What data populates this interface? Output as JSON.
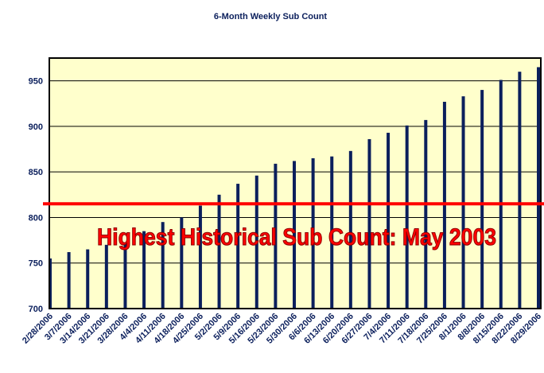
{
  "chart_data": {
    "type": "bar",
    "title": "6-Month Weekly Sub Count",
    "categories": [
      "2/28/2006",
      "3/7/2006",
      "3/14/2006",
      "3/21/2006",
      "3/28/2006",
      "4/4/2006",
      "4/11/2006",
      "4/18/2006",
      "4/25/2006",
      "5/2/2006",
      "5/9/2006",
      "5/16/2006",
      "5/23/2006",
      "5/30/2006",
      "6/6/2006",
      "6/13/2006",
      "6/20/2006",
      "6/27/2006",
      "7/4/2006",
      "7/11/2006",
      "7/18/2006",
      "7/25/2006",
      "8/1/2006",
      "8/8/2006",
      "8/15/2006",
      "8/22/2006",
      "8/29/2006"
    ],
    "values": [
      755,
      762,
      765,
      770,
      772,
      785,
      795,
      800,
      813,
      825,
      837,
      846,
      859,
      862,
      865,
      867,
      873,
      886,
      893,
      901,
      907,
      927,
      933,
      940,
      951,
      960,
      965
    ],
    "color": "#0b1f5c",
    "ylim": [
      700,
      975
    ],
    "yticks": [
      700,
      750,
      800,
      850,
      900,
      950
    ],
    "grid": true,
    "reference_line": {
      "value": 815,
      "color": "#ff0000",
      "label": "Highest Historical Sub Count: May 2003"
    }
  }
}
